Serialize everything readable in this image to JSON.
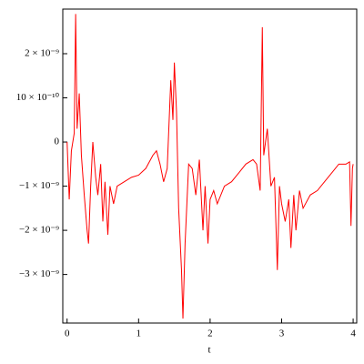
{
  "chart_data": {
    "type": "line",
    "xlabel": "t",
    "x": [
      0,
      0.03,
      0.06,
      0.1,
      0.12,
      0.14,
      0.17,
      0.2,
      0.24,
      0.28,
      0.3,
      0.33,
      0.36,
      0.4,
      0.43,
      0.47,
      0.5,
      0.53,
      0.57,
      0.6,
      0.65,
      0.7,
      0.8,
      0.9,
      1.0,
      1.1,
      1.2,
      1.25,
      1.3,
      1.35,
      1.4,
      1.45,
      1.48,
      1.5,
      1.53,
      1.56,
      1.6,
      1.62,
      1.65,
      1.7,
      1.75,
      1.8,
      1.85,
      1.9,
      1.93,
      1.97,
      2.0,
      2.05,
      2.1,
      2.2,
      2.3,
      2.4,
      2.5,
      2.6,
      2.65,
      2.7,
      2.73,
      2.75,
      2.8,
      2.85,
      2.9,
      2.94,
      2.97,
      3.0,
      3.05,
      3.1,
      3.13,
      3.17,
      3.2,
      3.25,
      3.3,
      3.4,
      3.5,
      3.6,
      3.7,
      3.8,
      3.9,
      3.95,
      3.97,
      3.99,
      4.0
    ],
    "series": [
      {
        "color": "#ff0000",
        "values": [
          0,
          -1.3e-09,
          -2e-10,
          2e-10,
          2.9e-09,
          3e-10,
          1.1e-09,
          -3e-10,
          -1.2e-09,
          -2e-09,
          -2.3e-09,
          -1e-09,
          0,
          -8e-10,
          -1.2e-09,
          -5e-10,
          -1.8e-09,
          -9e-10,
          -2.1e-09,
          -1e-09,
          -1.4e-09,
          -1e-09,
          -9e-10,
          -8e-10,
          -7.5e-10,
          -6e-10,
          -3e-10,
          -2e-10,
          -5e-10,
          -9e-10,
          -6e-10,
          1.4e-09,
          5e-10,
          1.8e-09,
          7e-10,
          -1.5e-09,
          -2.9e-09,
          -4e-09,
          -2.3e-09,
          -5e-10,
          -6e-10,
          -1.2e-09,
          -4e-10,
          -2e-09,
          -1e-09,
          -2.3e-09,
          -1.3e-09,
          -1.1e-09,
          -1.4e-09,
          -1e-09,
          -9e-10,
          -7e-10,
          -5e-10,
          -4e-10,
          -5e-10,
          -1.1e-09,
          2.6e-09,
          -3e-10,
          3e-10,
          -1e-09,
          -8e-10,
          -2.9e-09,
          -1e-09,
          -1.4e-09,
          -1.8e-09,
          -1.3e-09,
          -2.4e-09,
          -1.2e-09,
          -2e-09,
          -1.1e-09,
          -1.5e-09,
          -1.2e-09,
          -1.1e-09,
          -9e-10,
          -7e-10,
          -5e-10,
          -5e-10,
          -4.5e-10,
          -1.9e-09,
          -6e-10,
          -5e-10
        ]
      }
    ],
    "xlim": [
      -0.06,
      4.05
    ],
    "xticks": [
      0,
      1,
      2,
      3,
      4
    ],
    "ylim": [
      -4.1e-09,
      3.01e-09
    ],
    "yticks": [
      {
        "value": -3e-09,
        "label": "−3 × 10⁻⁹"
      },
      {
        "value": -2e-09,
        "label": "−2 × 10⁻⁹"
      },
      {
        "value": -1e-09,
        "label": "−1 × 10⁻⁹"
      },
      0,
      {
        "value": 1e-09,
        "label": "10 × 10⁻¹⁰"
      },
      {
        "value": 2e-09,
        "label": "2 × 10⁻⁹"
      }
    ]
  }
}
